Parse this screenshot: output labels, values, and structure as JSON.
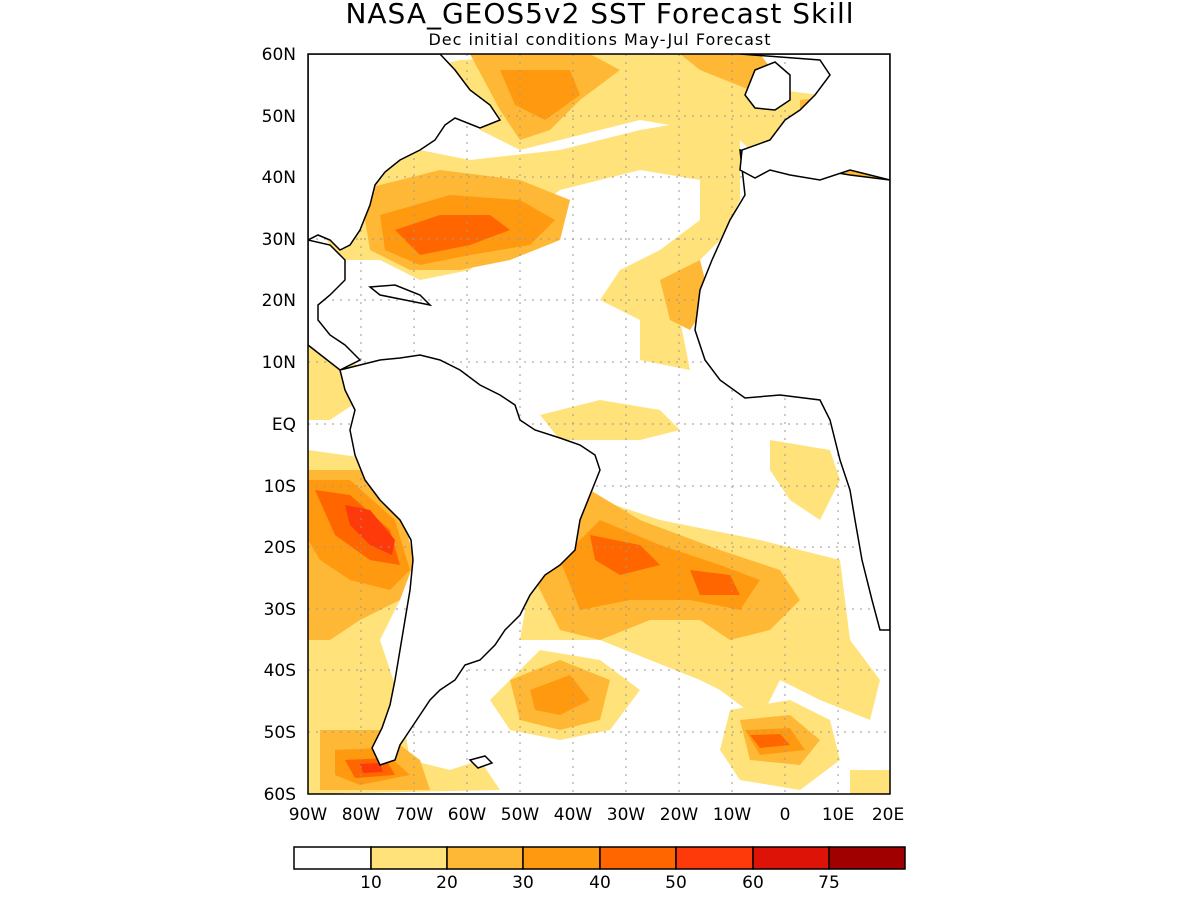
{
  "title": "NASA_GEOS5v2  SST  Forecast  Skill",
  "subtitle": "Dec initial conditions  May-Jul Forecast",
  "map": {
    "projection": "latlon",
    "region": "Atlantic Ocean and surrounding Americas / Africa / Europe",
    "lon_range": [
      -90,
      20
    ],
    "lat_range": [
      -60,
      60
    ],
    "grid": true,
    "lon_ticks": [
      "90W",
      "80W",
      "70W",
      "60W",
      "50W",
      "40W",
      "30W",
      "20W",
      "10W",
      "0",
      "10E",
      "20E"
    ],
    "lat_ticks": [
      "60N",
      "50N",
      "40N",
      "30N",
      "20N",
      "10N",
      "EQ",
      "10S",
      "20S",
      "30S",
      "40S",
      "50S",
      "60S"
    ]
  },
  "colorbar": {
    "colors": [
      "#ffffff",
      "#ffe27a",
      "#ffb835",
      "#ff9a10",
      "#ff6600",
      "#ff3a0a",
      "#dc1306",
      "#a00000"
    ],
    "labels": [
      "10",
      "20",
      "30",
      "40",
      "50",
      "60",
      "75"
    ]
  },
  "colors": {
    "coastline": "#000000",
    "grid": "#999999",
    "frame": "#000000"
  }
}
